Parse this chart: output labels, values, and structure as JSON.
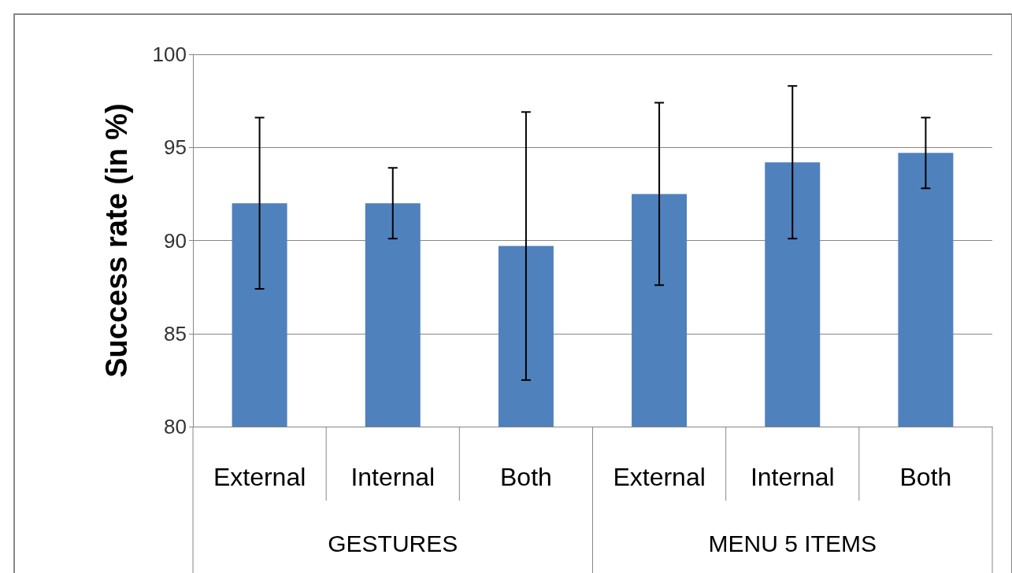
{
  "chart_data": {
    "type": "bar",
    "ylabel": "Success rate (in %)",
    "categories": [
      "External",
      "Internal",
      "Both",
      "External",
      "Internal",
      "Both"
    ],
    "values": [
      92.0,
      92.0,
      89.7,
      92.5,
      94.2,
      94.7
    ],
    "errors": [
      4.6,
      1.9,
      7.2,
      4.9,
      4.1,
      1.9
    ],
    "color": "#4f81bd",
    "annotations": [
      "GESTURES",
      "MENU 5 ITEMS"
    ],
    "ylim": [
      80,
      100
    ],
    "yticks": [
      80,
      85,
      90,
      95,
      100
    ],
    "grid": "y"
  }
}
